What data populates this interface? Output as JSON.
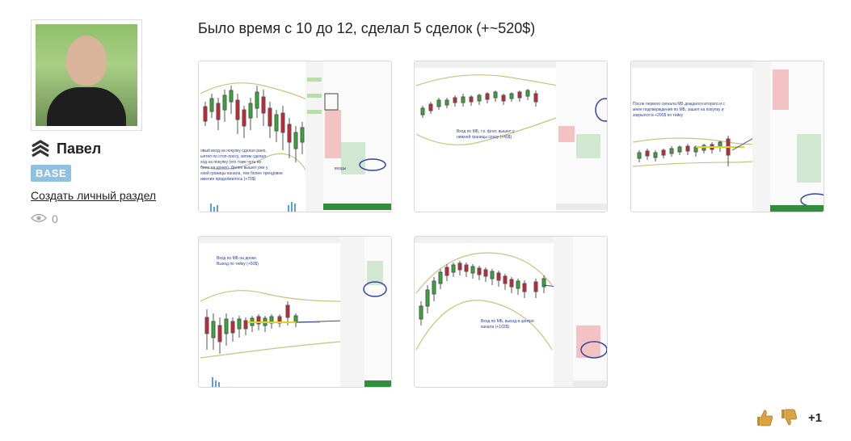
{
  "user": {
    "name": "Павел",
    "badge": "BASE",
    "create_link": "Создать личный раздел",
    "views": "0"
  },
  "post": {
    "title": "Было время с 10 до 12, сделал 5 сделок (+~520$)",
    "screenshots": [
      {
        "annotation_lines": [
          "овый вход на покупку сделал рано,",
          "ыетел по стоп-лоссу, затем сделал",
          "ход на покупку (его тоже чуть не",
          "било на донке). Далее вышел уже у",
          "хней границы канала, тем более трендовое",
          "ижение продолжилось (+70$)"
        ],
        "label": "входы"
      },
      {
        "annotation_lines": [
          "Вход по МБ, т.к. флэт, вышел у",
          "нижней границы сразу (+40$)"
        ]
      },
      {
        "annotation_lines": [
          "После первого сигнала МБ дождался второго и с",
          "мнее подтверждения по МБ, зашел на покупку и",
          "закрылся в +200$ по тейку"
        ]
      },
      {
        "annotation_lines": [
          "Вход по МБ на донке.",
          "Выход по тейку (+50$)"
        ]
      },
      {
        "annotation_lines": [
          "Вход по МБ, выход в центре",
          "канала (+102$)"
        ]
      }
    ]
  },
  "rating": {
    "score": "+1"
  },
  "icons": {
    "rank": "rank-chevrons-icon",
    "views": "eye-icon",
    "like": "thumbs-up-icon",
    "dislike": "thumbs-down-icon"
  },
  "colors": {
    "badge": "#8ec1e0",
    "like": "#d9a441"
  }
}
